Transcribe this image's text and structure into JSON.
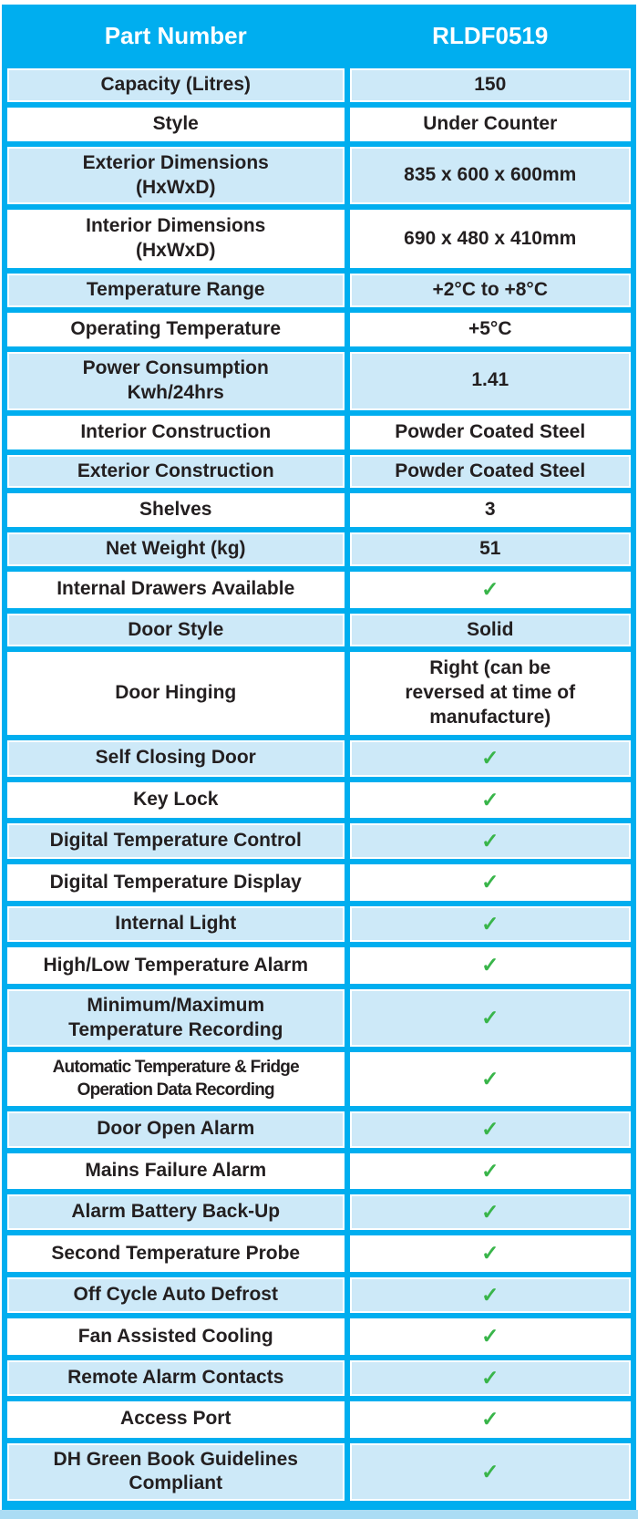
{
  "page": {
    "header": {
      "label_col": "Part Number",
      "value_col": "RLDF0519"
    },
    "rows": [
      {
        "label": "Capacity (Litres)",
        "value": "150"
      },
      {
        "label": "Style",
        "value": "Under Counter"
      },
      {
        "label": "Exterior Dimensions\n(HxWxD)",
        "value": "835 x 600 x 600mm"
      },
      {
        "label": "Interior Dimensions\n(HxWxD)",
        "value": "690 x 480 x 410mm"
      },
      {
        "label": "Temperature Range",
        "value": "+2°C to +8°C"
      },
      {
        "label": "Operating Temperature",
        "value": "+5°C"
      },
      {
        "label": "Power Consumption\nKwh/24hrs",
        "value": "1.41"
      },
      {
        "label": "Interior Construction",
        "value": "Powder Coated Steel"
      },
      {
        "label": "Exterior Construction",
        "value": "Powder Coated Steel"
      },
      {
        "label": "Shelves",
        "value": "3"
      },
      {
        "label": "Net Weight (kg)",
        "value": "51"
      },
      {
        "label": "Internal Drawers Available",
        "value": "✓",
        "check": true
      },
      {
        "label": "Door Style",
        "value": "Solid"
      },
      {
        "label": "Door Hinging",
        "value": "Right (can be\nreversed at time of\nmanufacture)"
      },
      {
        "label": "Self Closing Door",
        "value": "✓",
        "check": true
      },
      {
        "label": "Key Lock",
        "value": "✓",
        "check": true
      },
      {
        "label": "Digital Temperature Control",
        "value": "✓",
        "check": true
      },
      {
        "label": "Digital Temperature Display",
        "value": "✓",
        "check": true
      },
      {
        "label": "Internal Light",
        "value": "✓",
        "check": true
      },
      {
        "label": "High/Low Temperature Alarm",
        "value": "✓",
        "check": true
      },
      {
        "label": "Minimum/Maximum\nTemperature Recording",
        "value": "✓",
        "check": true
      },
      {
        "label": "Automatic Temperature & Fridge\nOperation Data Recording",
        "value": "✓",
        "check": true,
        "condensed": true
      },
      {
        "label": "Door Open Alarm",
        "value": "✓",
        "check": true
      },
      {
        "label": "Mains Failure Alarm",
        "value": "✓",
        "check": true
      },
      {
        "label": "Alarm Battery Back-Up",
        "value": "✓",
        "check": true
      },
      {
        "label": "Second Temperature Probe",
        "value": "✓",
        "check": true
      },
      {
        "label": "Off Cycle Auto Defrost",
        "value": "✓",
        "check": true
      },
      {
        "label": "Fan Assisted Cooling",
        "value": "✓",
        "check": true
      },
      {
        "label": "Remote Alarm Contacts",
        "value": "✓",
        "check": true
      },
      {
        "label": "Access Port",
        "value": "✓",
        "check": true
      },
      {
        "label": "DH Green Book Guidelines\nCompliant",
        "value": "✓",
        "check": true
      }
    ],
    "colors": {
      "frame_blue": "#00AEEF",
      "row_light_blue": "#CDE9F8",
      "row_white": "#FFFFFF",
      "check_green": "#39B54A",
      "text_dark": "#231F20",
      "header_text": "#FFFFFF",
      "page_strip_blue": "#ABDCF4"
    }
  }
}
